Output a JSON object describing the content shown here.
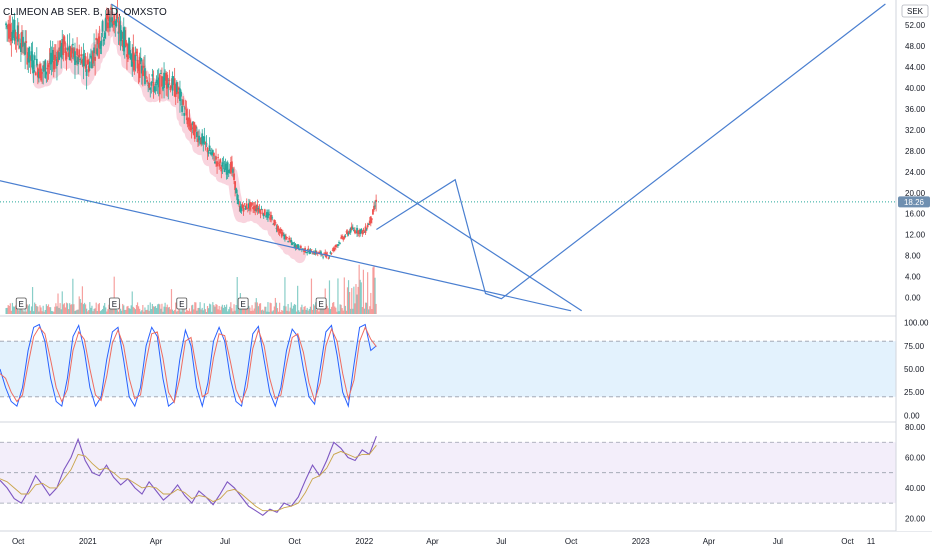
{
  "header": {
    "symbol_title": "CLIMEON AB SER. B, 1D, OMXSTO",
    "currency": "SEK",
    "last_price_label": "18.26"
  },
  "chart_data": [
    {
      "type": "candlestick",
      "pane": "price",
      "title": "CLIMEON AB SER. B, 1D, OMXSTO",
      "ylabel": "SEK",
      "ylim": [
        -3.5,
        56
      ],
      "y_ticks": [
        0,
        4,
        8,
        12,
        16,
        20,
        24,
        28,
        32,
        36,
        40,
        44,
        48,
        52
      ],
      "y_tick_labels": [
        "0.00",
        "4.00",
        "8.00",
        "12.00",
        "16.00",
        "20.00",
        "24.00",
        "28.00",
        "32.00",
        "36.00",
        "40.00",
        "44.00",
        "48.00",
        "52.00"
      ],
      "last_price": 18.26,
      "x_labels": [
        "Oct",
        "2021",
        "Apr",
        "Jul",
        "Oct",
        "2022",
        "Apr",
        "Jul",
        "Oct",
        "2023",
        "Apr",
        "Jul",
        "Oct",
        "11"
      ],
      "x_label_dates": [
        "2020-10-01",
        "2021-01-01",
        "2021-04-01",
        "2021-07-01",
        "2021-10-01",
        "2022-01-01",
        "2022-04-01",
        "2022-07-01",
        "2022-10-01",
        "2023-01-01",
        "2023-04-01",
        "2023-07-01",
        "2023-10-01",
        "2023-11-01"
      ],
      "close_series": [
        [
          "2020-09-15",
          52.0
        ],
        [
          "2020-10-01",
          50.0
        ],
        [
          "2020-10-15",
          46.0
        ],
        [
          "2020-11-01",
          43.0
        ],
        [
          "2020-11-15",
          45.0
        ],
        [
          "2020-12-01",
          48.0
        ],
        [
          "2020-12-15",
          46.0
        ],
        [
          "2021-01-01",
          44.0
        ],
        [
          "2021-01-15",
          49.0
        ],
        [
          "2021-02-01",
          54.0
        ],
        [
          "2021-02-15",
          50.0
        ],
        [
          "2021-03-01",
          46.0
        ],
        [
          "2021-03-15",
          43.0
        ],
        [
          "2021-04-01",
          40.0
        ],
        [
          "2021-04-15",
          42.0
        ],
        [
          "2021-05-01",
          39.0
        ],
        [
          "2021-05-15",
          33.0
        ],
        [
          "2021-06-01",
          30.0
        ],
        [
          "2021-06-15",
          27.0
        ],
        [
          "2021-07-01",
          24.5
        ],
        [
          "2021-07-10",
          25.0
        ],
        [
          "2021-07-20",
          17.0
        ],
        [
          "2021-08-01",
          17.5
        ],
        [
          "2021-08-15",
          17.0
        ],
        [
          "2021-09-01",
          15.0
        ],
        [
          "2021-09-15",
          12.0
        ],
        [
          "2021-10-01",
          10.0
        ],
        [
          "2021-10-15",
          9.0
        ],
        [
          "2021-11-01",
          8.5
        ],
        [
          "2021-11-15",
          8.0
        ],
        [
          "2021-12-01",
          11.0
        ],
        [
          "2021-12-15",
          13.0
        ],
        [
          "2022-01-01",
          12.5
        ],
        [
          "2022-01-10",
          15.0
        ],
        [
          "2022-01-17",
          18.26
        ]
      ],
      "event_markers": [
        {
          "label": "E",
          "date": "2020-10-05"
        },
        {
          "label": "E",
          "date": "2021-02-05"
        },
        {
          "label": "E",
          "date": "2021-05-05"
        },
        {
          "label": "E",
          "date": "2021-07-25"
        },
        {
          "label": "E",
          "date": "2021-11-05"
        }
      ],
      "drawings": [
        {
          "name": "upper-trendline",
          "points": [
            [
              "2021-02-01",
              56.0
            ],
            [
              "2022-10-15",
              -2.5
            ]
          ]
        },
        {
          "name": "lower-trendline",
          "points": [
            [
              "2020-09-01",
              22.5
            ],
            [
              "2022-10-01",
              -2.5
            ]
          ]
        },
        {
          "name": "projection-path",
          "points": [
            [
              "2022-01-17",
              13.0
            ],
            [
              "2022-05-01",
              22.5
            ],
            [
              "2022-06-10",
              0.8
            ],
            [
              "2022-07-01",
              -0.2
            ],
            [
              "2023-11-20",
              56.0
            ]
          ]
        }
      ]
    },
    {
      "type": "line",
      "pane": "stochastic",
      "ylim": [
        -5,
        105
      ],
      "y_ticks": [
        0,
        25,
        50,
        75,
        100
      ],
      "y_tick_labels": [
        "0.00",
        "25.00",
        "50.00",
        "75.00",
        "100.00"
      ],
      "bands": {
        "upper": 80,
        "lower": 20
      },
      "series": [
        {
          "values": [
            50,
            30,
            15,
            10,
            30,
            70,
            95,
            98,
            80,
            40,
            15,
            10,
            40,
            85,
            97,
            70,
            30,
            10,
            20,
            60,
            90,
            95,
            60,
            20,
            10,
            30,
            75,
            95,
            85,
            40,
            10,
            15,
            60,
            92,
            75,
            30,
            10,
            35,
            80,
            95,
            80,
            40,
            15,
            10,
            45,
            88,
            96,
            60,
            25,
            10,
            30,
            70,
            93,
            85,
            50,
            20,
            12,
            50,
            90,
            97,
            65,
            25,
            10,
            55,
            95,
            98,
            70,
            75
          ]
        },
        {
          "values": [
            45,
            40,
            25,
            15,
            22,
            55,
            85,
            95,
            88,
            60,
            30,
            15,
            28,
            70,
            90,
            82,
            50,
            22,
            16,
            42,
            78,
            92,
            75,
            40,
            18,
            22,
            58,
            88,
            90,
            62,
            25,
            14,
            40,
            80,
            84,
            50,
            20,
            24,
            62,
            88,
            86,
            58,
            28,
            14,
            30,
            72,
            92,
            75,
            40,
            18,
            22,
            55,
            84,
            88,
            68,
            35,
            16,
            35,
            75,
            93,
            80,
            45,
            18,
            38,
            80,
            95,
            82,
            74
          ]
        }
      ]
    },
    {
      "type": "line",
      "pane": "rsi",
      "ylim": [
        13,
        82
      ],
      "y_ticks": [
        20,
        40,
        60,
        80
      ],
      "y_tick_labels": [
        "20.00",
        "40.00",
        "60.00",
        "80.00"
      ],
      "bands": {
        "upper": 70,
        "middle": 50,
        "lower": 30
      },
      "series": [
        {
          "values": [
            45,
            40,
            33,
            30,
            38,
            48,
            42,
            35,
            40,
            52,
            60,
            72,
            58,
            50,
            48,
            55,
            47,
            42,
            46,
            40,
            36,
            44,
            38,
            32,
            36,
            42,
            35,
            30,
            38,
            34,
            29,
            36,
            44,
            40,
            34,
            28,
            25,
            22,
            26,
            24,
            30,
            28,
            34,
            45,
            55,
            48,
            58,
            70,
            66,
            60,
            58,
            65,
            62,
            74
          ]
        },
        {
          "values": [
            46,
            44,
            40,
            36,
            36,
            42,
            43,
            40,
            40,
            46,
            52,
            62,
            61,
            56,
            52,
            53,
            50,
            46,
            46,
            43,
            40,
            41,
            40,
            36,
            36,
            39,
            37,
            33,
            35,
            34,
            31,
            33,
            38,
            39,
            36,
            32,
            28,
            25,
            25,
            25,
            27,
            28,
            30,
            37,
            46,
            48,
            53,
            62,
            64,
            62,
            60,
            62,
            62,
            68
          ]
        }
      ]
    }
  ],
  "colors": {
    "background": "#ffffff",
    "up": "#26a69a",
    "down": "#ef5350",
    "volume_up": "#26a69a",
    "volume_down": "#ef5350",
    "highlight": "#f7c6d3",
    "trendline": "#4a7fd0",
    "last_price_badge": "#6f8fb0",
    "axis_text": "#131722",
    "stoch_fill": "#e3f2fd",
    "stoch_k": "#2962ff",
    "stoch_d": "#ef6c60",
    "rsi_fill": "#f3eefa",
    "rsi_line": "#7e57c2",
    "rsi_ma": "#c9a54b"
  }
}
